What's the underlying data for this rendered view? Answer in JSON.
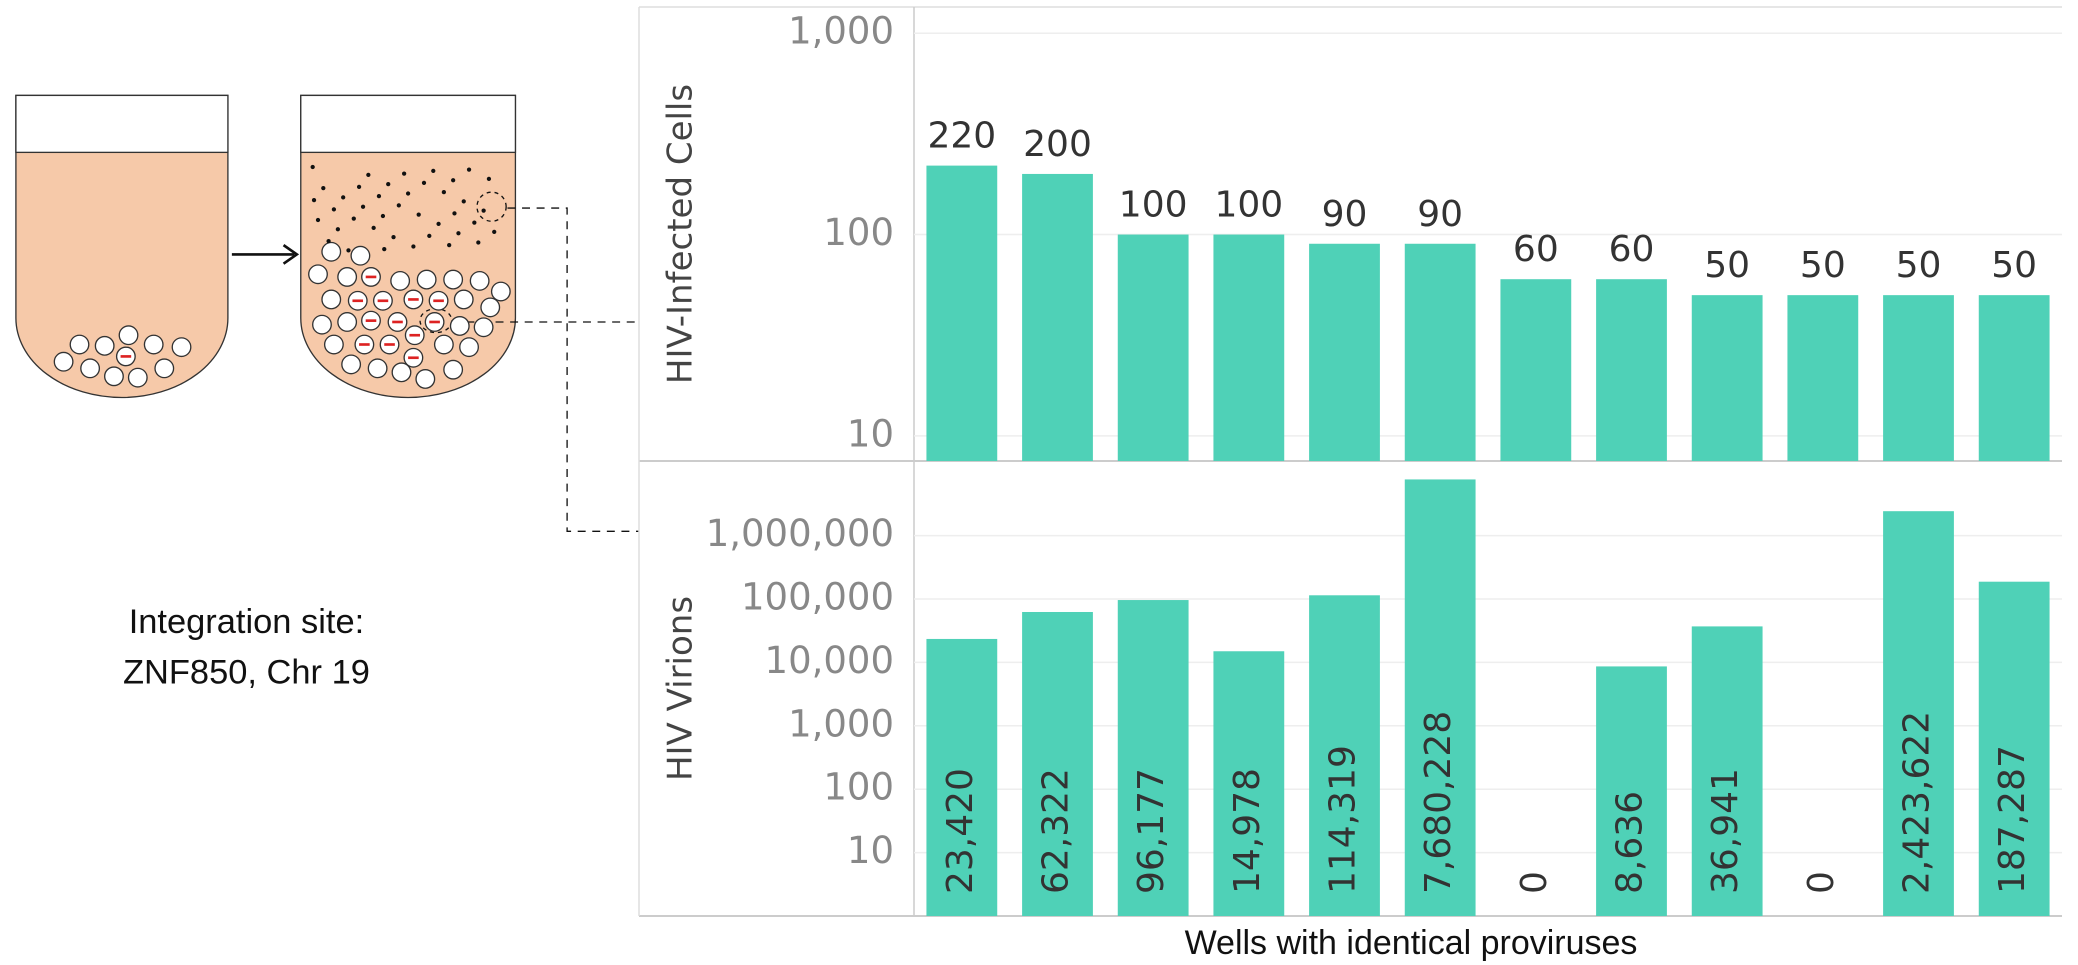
{
  "chart_data": [
    {
      "type": "bar",
      "y_label": "HIV-Infected Cells",
      "categories": [
        null,
        null,
        null,
        null,
        null,
        null,
        null,
        null,
        null,
        null,
        null,
        null
      ],
      "values": [
        220,
        200,
        100,
        100,
        90,
        90,
        60,
        60,
        50,
        50,
        50,
        50
      ],
      "color": "#4fd1b7",
      "log_scale": true,
      "grid": true,
      "ylim": [
        7.5,
        1350
      ],
      "yticks": [
        10,
        100,
        {
          "value": 1000,
          "label": "1,000"
        }
      ]
    },
    {
      "type": "bar",
      "y_label": "HIV Virions",
      "x_label": "Wells with identical proviruses",
      "categories": [
        null,
        null,
        null,
        null,
        null,
        null,
        null,
        null,
        null,
        null,
        null,
        null
      ],
      "values": [
        23420,
        62322,
        96177,
        14978,
        114319,
        7680228,
        0,
        8636,
        36941,
        0,
        2423622,
        187287
      ],
      "value_labels": [
        "23,420",
        "62,322",
        "96,177",
        "14,978",
        "114,319",
        "7,680,228",
        "0",
        "8,636",
        "36,941",
        "0",
        "2,423,622",
        "187,287"
      ],
      "color": "#4fd1b7",
      "log_scale": true,
      "grid": true,
      "ylim": [
        1,
        15000000
      ],
      "yticks": [
        10,
        100,
        {
          "value": 1000,
          "label": "1,000"
        },
        {
          "value": 10000,
          "label": "10,000"
        },
        {
          "value": 100000,
          "label": "100,000"
        },
        {
          "value": 1000000,
          "label": "1,000,000"
        }
      ]
    }
  ],
  "diagram": {
    "label": [
      "Integration site:",
      "ZNF850, Chr 19"
    ]
  }
}
